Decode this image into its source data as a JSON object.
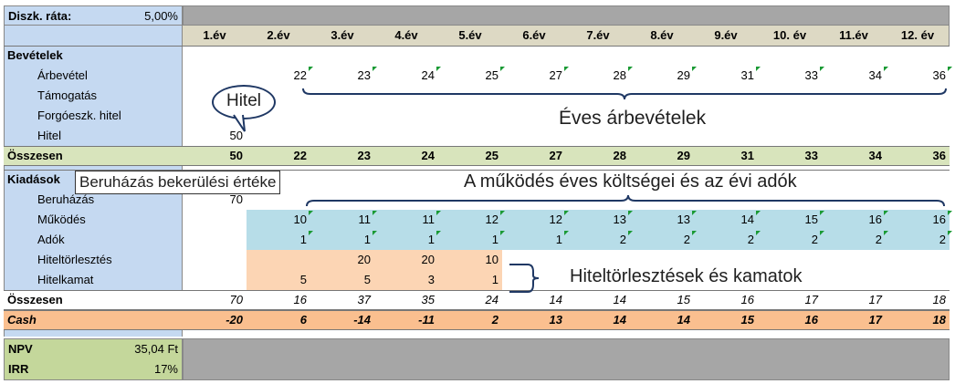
{
  "discount": {
    "label": "Diszk. ráta:",
    "value": "5,00%"
  },
  "years": [
    "1.év",
    "2.év",
    "3.év",
    "4.év",
    "5.év",
    "6.év",
    "7.év",
    "8.év",
    "9.év",
    "10. év",
    "11.év",
    "12. év"
  ],
  "income": {
    "title": "Bevételek",
    "rows": [
      {
        "label": "Árbevétel",
        "values": [
          "",
          "22",
          "23",
          "24",
          "25",
          "27",
          "28",
          "29",
          "31",
          "33",
          "34",
          "36"
        ]
      },
      {
        "label": "Támogatás",
        "values": [
          "",
          "",
          "",
          "",
          "",
          "",
          "",
          "",
          "",
          "",
          "",
          ""
        ]
      },
      {
        "label": "Forgóeszk. hitel",
        "values": [
          "",
          "",
          "",
          "",
          "",
          "",
          "",
          "",
          "",
          "",
          "",
          ""
        ]
      },
      {
        "label": "Hitel",
        "values": [
          "50",
          "",
          "",
          "",
          "",
          "",
          "",
          "",
          "",
          "",
          "",
          ""
        ]
      }
    ],
    "total_label": "Összesen",
    "totals": [
      "50",
      "22",
      "23",
      "24",
      "25",
      "27",
      "28",
      "29",
      "31",
      "33",
      "34",
      "36"
    ]
  },
  "expenses": {
    "title": "Kiadások",
    "rows": [
      {
        "label": "Beruházás",
        "values": [
          "70",
          "",
          "",
          "",
          "",
          "",
          "",
          "",
          "",
          "",
          "",
          ""
        ]
      },
      {
        "label": "Működés",
        "values": [
          "",
          "10",
          "11",
          "11",
          "12",
          "12",
          "13",
          "13",
          "14",
          "15",
          "16",
          "16"
        ]
      },
      {
        "label": "Adók",
        "values": [
          "",
          "1",
          "1",
          "1",
          "1",
          "1",
          "2",
          "2",
          "2",
          "2",
          "2",
          "2"
        ]
      },
      {
        "label": "Hiteltörlesztés",
        "values": [
          "",
          "",
          "20",
          "20",
          "10",
          "",
          "",
          "",
          "",
          "",
          "",
          ""
        ]
      },
      {
        "label": "Hitelkamat",
        "values": [
          "",
          "5",
          "5",
          "3",
          "1",
          "",
          "",
          "",
          "",
          "",
          "",
          ""
        ]
      }
    ],
    "total_label": "Összesen",
    "totals": [
      "70",
      "16",
      "37",
      "35",
      "24",
      "14",
      "14",
      "15",
      "16",
      "17",
      "17",
      "18"
    ]
  },
  "cash": {
    "label": "Cash",
    "values": [
      "-20",
      "6",
      "-14",
      "-11",
      "2",
      "13",
      "14",
      "14",
      "15",
      "16",
      "17",
      "18"
    ]
  },
  "npv": {
    "label": "NPV",
    "value": "35,04 Ft"
  },
  "irr": {
    "label": "IRR",
    "value": "17%"
  },
  "annotations": {
    "hitel": "Hitel",
    "eves_arbevetelek": "Éves árbevételek",
    "beruhazas": "Beruházás bekerülési értéke",
    "mukodes": "A működés éves költségei és az évi adók",
    "hiteltorlesztes": "Hiteltörlesztések és kamatok"
  },
  "colors": {
    "label_bg": "#c5d9f1",
    "header_bg": "#ddd9c4",
    "total_bg": "#d8e4bc",
    "blue_fill": "#b7dde8",
    "peach_fill": "#fcd5b4",
    "cash_fill": "#fabf8f",
    "gray": "#a6a6a6",
    "npv_bg": "#c4d79b"
  }
}
